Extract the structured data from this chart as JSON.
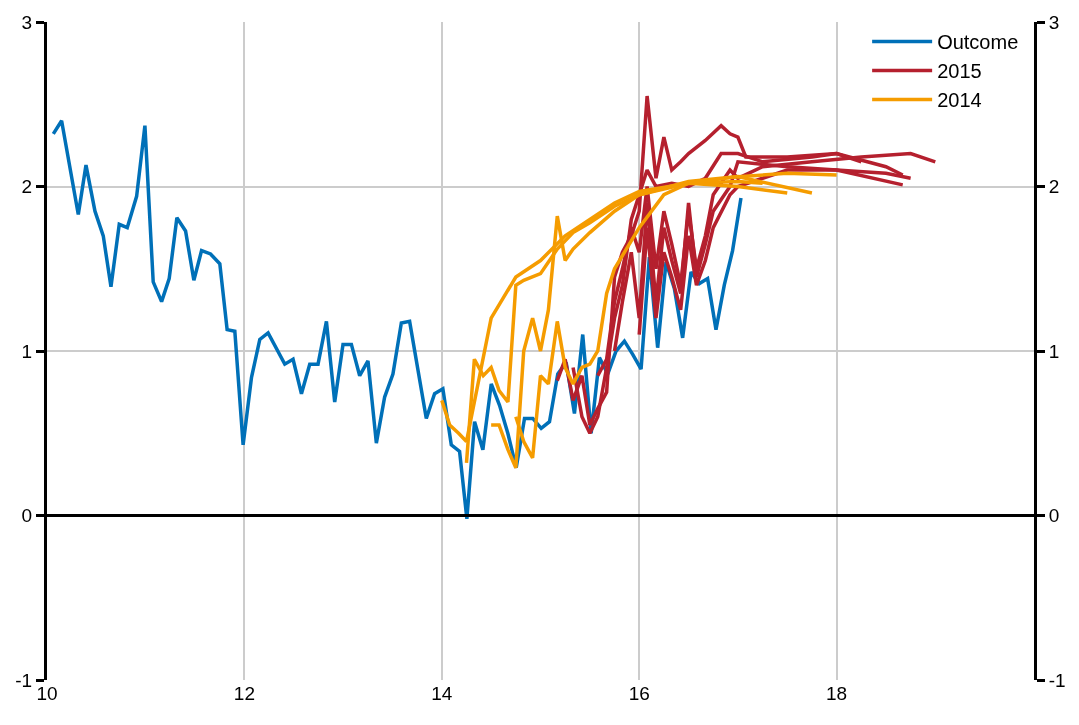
{
  "chart_data": {
    "type": "line",
    "xlim": [
      10,
      20
    ],
    "xticks": [
      10,
      12,
      14,
      16,
      18
    ],
    "ylim": [
      -1,
      3
    ],
    "yticks": [
      -1,
      0,
      1,
      2,
      3
    ],
    "y2lim": [
      -1,
      3
    ],
    "y2ticks": [
      -1,
      0,
      1,
      2,
      3
    ],
    "grid": true,
    "legend": "top right",
    "marker": "none",
    "line_style": "solid",
    "ref_lines": [
      {
        "axis": "y",
        "value": 0,
        "label": null,
        "color": "#000000"
      }
    ],
    "series": [
      {
        "name": "Outcome",
        "color": "#0070b8",
        "x": [
          10.064,
          10.148,
          10.317,
          10.395,
          10.486,
          10.57,
          10.648,
          10.732,
          10.813,
          10.908,
          10.992,
          11.076,
          11.161,
          11.238,
          11.316,
          11.404,
          11.488,
          11.566,
          11.657,
          11.751,
          11.825,
          11.903,
          11.987,
          12.072,
          12.156,
          12.24,
          12.409,
          12.493,
          12.578,
          12.662,
          12.746,
          12.831,
          12.915,
          12.999,
          13.084,
          13.168,
          13.252,
          13.337,
          13.421,
          13.505,
          13.59,
          13.674,
          13.843,
          13.927,
          14.011,
          14.096,
          14.18,
          14.254,
          14.332,
          14.416,
          14.501,
          14.585,
          14.669,
          14.754,
          14.838,
          14.922,
          15.007,
          15.091,
          15.175,
          15.26,
          15.344,
          15.428,
          15.513,
          15.597,
          15.681,
          15.766,
          15.85,
          15.934,
          16.019,
          16.103,
          16.187,
          16.272,
          16.356,
          16.44,
          16.525,
          16.609,
          16.693,
          16.778,
          16.862,
          16.946,
          17.031
        ],
        "values": [
          2.32,
          2.4,
          1.83,
          2.13,
          1.85,
          1.7,
          1.39,
          1.77,
          1.75,
          1.94,
          2.37,
          1.42,
          1.3,
          1.44,
          1.81,
          1.73,
          1.43,
          1.61,
          1.59,
          1.53,
          1.13,
          1.12,
          0.43,
          0.84,
          1.07,
          1.11,
          0.92,
          0.95,
          0.74,
          0.92,
          0.92,
          1.18,
          0.69,
          1.04,
          1.04,
          0.85,
          0.94,
          0.44,
          0.72,
          0.86,
          1.17,
          1.18,
          0.59,
          0.74,
          0.77,
          0.43,
          0.39,
          -0.02,
          0.57,
          0.4,
          0.8,
          0.67,
          0.5,
          0.29,
          0.59,
          0.59,
          0.53,
          0.57,
          0.86,
          0.93,
          0.62,
          1.1,
          0.5,
          0.96,
          0.86,
          1.0,
          1.06,
          0.98,
          0.89,
          1.57,
          1.02,
          1.54,
          1.38,
          1.08,
          1.48,
          1.41,
          1.44,
          1.13,
          1.4,
          1.61,
          1.93
        ]
      },
      {
        "name": "2015",
        "color": "#b5202e",
        "x": [
          15.17,
          15.25,
          15.33,
          15.42,
          15.5,
          15.58,
          15.67,
          15.75,
          15.83,
          15.92,
          16.0,
          16.08,
          16.17,
          16.25,
          16.33,
          16.42,
          16.5,
          16.67,
          16.83,
          16.92,
          17.0,
          17.08,
          17.5,
          18.0,
          18.25
        ],
        "values": [
          0.82,
          0.95,
          0.7,
          0.85,
          0.55,
          0.65,
          0.75,
          1.45,
          1.6,
          1.7,
          1.85,
          2.55,
          2.05,
          2.3,
          2.1,
          2.15,
          2.2,
          2.28,
          2.37,
          2.32,
          2.3,
          2.18,
          2.18,
          2.2,
          2.15
        ]
      },
      {
        "color": "#b5202e",
        "x": [
          15.33,
          15.42,
          15.5,
          15.58,
          15.67,
          15.75,
          15.83,
          15.92,
          16.0,
          16.08,
          16.17,
          16.33,
          16.5,
          16.67,
          16.83,
          17.0,
          17.25,
          17.75,
          18.0,
          18.5,
          18.67
        ],
        "values": [
          0.9,
          0.6,
          0.5,
          0.6,
          0.9,
          1.2,
          1.4,
          1.8,
          1.95,
          2.1,
          2.0,
          2.02,
          2.0,
          2.05,
          2.2,
          2.2,
          2.15,
          2.18,
          2.2,
          2.12,
          2.07
        ]
      },
      {
        "color": "#b5202e",
        "x": [
          15.58,
          15.67,
          15.75,
          15.83,
          15.92,
          16.0,
          16.08,
          16.17,
          16.25,
          16.33,
          16.42,
          16.5,
          16.58,
          16.67,
          16.75,
          16.92,
          17.0,
          17.25,
          17.75,
          18.25,
          18.75,
          19.0
        ],
        "values": [
          0.85,
          0.95,
          1.3,
          1.5,
          1.75,
          1.6,
          2.0,
          1.5,
          1.85,
          1.65,
          1.4,
          1.85,
          1.5,
          1.7,
          1.95,
          2.1,
          2.05,
          2.12,
          2.15,
          2.18,
          2.2,
          2.15
        ]
      },
      {
        "color": "#b5202e",
        "x": [
          15.75,
          15.83,
          15.92,
          16.0,
          16.08,
          16.17,
          16.25,
          16.33,
          16.42,
          16.5,
          16.58,
          16.67,
          16.75,
          16.92,
          17.0,
          17.5,
          18.0,
          18.67
        ],
        "values": [
          1.0,
          1.3,
          1.6,
          1.2,
          1.9,
          1.3,
          1.75,
          1.55,
          1.35,
          1.9,
          1.45,
          1.65,
          1.85,
          2.0,
          2.15,
          2.12,
          2.1,
          2.01
        ]
      },
      {
        "color": "#b5202e",
        "x": [
          16.0,
          16.08,
          16.17,
          16.25,
          16.33,
          16.42,
          16.5,
          16.58,
          16.67,
          16.75,
          16.92,
          17.0,
          17.25,
          17.5,
          18.0,
          18.5,
          18.75
        ],
        "values": [
          1.1,
          1.75,
          1.2,
          1.6,
          1.45,
          1.25,
          1.7,
          1.4,
          1.55,
          1.75,
          1.95,
          2.0,
          2.05,
          2.1,
          2.1,
          2.08,
          2.05
        ]
      },
      {
        "name": "2014",
        "color": "#f59c00",
        "x": [
          14.0,
          14.08,
          14.17,
          14.25,
          14.5,
          14.75,
          15.0,
          15.25,
          15.5,
          15.75,
          16.0,
          16.5,
          17.0,
          17.25
        ],
        "values": [
          0.7,
          0.55,
          0.5,
          0.45,
          1.2,
          1.45,
          1.55,
          1.7,
          1.8,
          1.9,
          1.97,
          2.02,
          2.03,
          2.02
        ]
      },
      {
        "color": "#f59c00",
        "x": [
          14.25,
          14.33,
          14.42,
          14.5,
          14.58,
          14.67,
          14.75,
          14.83,
          15.0,
          15.17,
          15.33,
          15.5,
          15.75,
          16.0,
          16.5,
          17.0,
          17.5
        ],
        "values": [
          0.32,
          0.95,
          0.85,
          0.9,
          0.76,
          0.69,
          1.4,
          1.43,
          1.47,
          1.62,
          1.72,
          1.78,
          1.88,
          1.95,
          2.02,
          2.0,
          1.96
        ]
      },
      {
        "color": "#f59c00",
        "x": [
          14.5,
          14.58,
          14.67,
          14.75,
          14.83,
          14.92,
          15.0,
          15.08,
          15.17,
          15.25,
          15.33,
          15.5,
          15.75,
          16.0,
          16.5,
          17.0,
          17.75
        ],
        "values": [
          0.55,
          0.55,
          0.4,
          0.29,
          1.0,
          1.2,
          1.0,
          1.25,
          1.82,
          1.55,
          1.62,
          1.72,
          1.85,
          1.95,
          2.03,
          2.06,
          1.96
        ]
      },
      {
        "color": "#f59c00",
        "x": [
          14.75,
          14.83,
          14.92,
          15.0,
          15.08,
          15.17,
          15.25,
          15.33,
          15.42,
          15.5,
          15.58,
          15.67,
          15.75,
          16.0,
          16.25,
          16.5,
          17.0,
          17.5,
          18.0
        ],
        "values": [
          0.6,
          0.45,
          0.35,
          0.85,
          0.8,
          1.18,
          0.9,
          0.8,
          0.9,
          0.92,
          1.0,
          1.35,
          1.5,
          1.75,
          1.95,
          2.02,
          2.06,
          2.08,
          2.07
        ]
      }
    ]
  }
}
